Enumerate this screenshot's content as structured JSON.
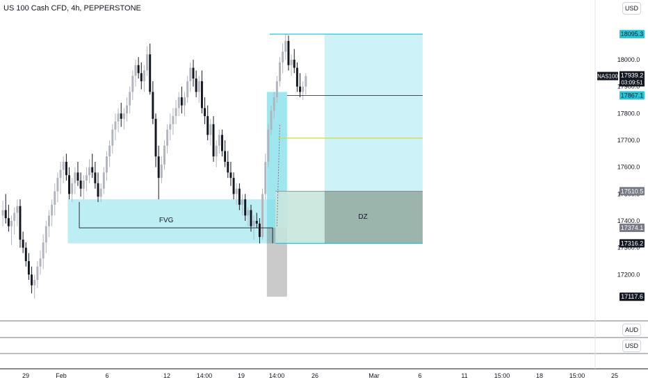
{
  "header": {
    "symbol_title": "US 100 Cash CFD, 4h, PEPPERSTONE"
  },
  "currency_buttons": {
    "main": "USD",
    "pane1": "AUD",
    "pane2": "USD"
  },
  "price_tag": {
    "symbol": "NAS100",
    "price": "17939.2",
    "countdown": "03:09:51"
  },
  "chart_data": {
    "type": "candlestick",
    "y_axis": {
      "min": 17100,
      "max": 18150,
      "ticks": [
        17200,
        17300,
        17400,
        17500,
        17600,
        17700,
        17800,
        17900,
        18000
      ],
      "tick_labels": [
        "17200.0",
        "17300.0",
        "17400.0",
        "17500.0",
        "17600.0",
        "17700.0",
        "17800.0",
        "17900.0",
        "18000.0"
      ]
    },
    "x_axis_labels": [
      "29",
      "Feb",
      "6",
      "12",
      "14:00",
      "19",
      "14:00",
      "26",
      "Mar",
      "6",
      "11",
      "15:00",
      "18",
      "15:00",
      "25"
    ],
    "level_labels": [
      {
        "text": "18095.3",
        "value": 18095.3,
        "bg": "#26c6da",
        "fg": "#131722"
      },
      {
        "text": "17867.1",
        "value": 17867.1,
        "bg": "#26c6da",
        "fg": "#131722"
      },
      {
        "text": "17510.5",
        "value": 17510.5,
        "bg": "#787b86",
        "fg": "#ffffff"
      },
      {
        "text": "17374.1",
        "value": 17374.1,
        "bg": "#787b86",
        "fg": "#ffffff"
      },
      {
        "text": "17316.2",
        "value": 17316.2,
        "bg": "#131722",
        "fg": "#ffffff"
      },
      {
        "text": "17117.6",
        "value": 17117.6,
        "bg": "#131722",
        "fg": "#ffffff"
      }
    ],
    "annotations": [
      {
        "text": "FVG",
        "kind": "fvg_zone",
        "from_bar": 23,
        "to_bar": 95,
        "low": 17316.2,
        "high": 17480
      },
      {
        "text": "DZ",
        "kind": "demand_zone",
        "from_bar": 95,
        "to_bar": 146,
        "low": 17316.2,
        "high": 17510.5
      }
    ],
    "target_box": {
      "from_bar": 112,
      "to_bar": 146,
      "low": 17510.5,
      "high": 18095.3
    },
    "midline": 17708,
    "entry_line": 17867.1,
    "candles_ohlc": [
      [
        17420,
        17475,
        17380,
        17440
      ],
      [
        17440,
        17500,
        17390,
        17410
      ],
      [
        17410,
        17460,
        17360,
        17380
      ],
      [
        17380,
        17420,
        17310,
        17400
      ],
      [
        17400,
        17450,
        17350,
        17430
      ],
      [
        17430,
        17480,
        17380,
        17455
      ],
      [
        17455,
        17480,
        17300,
        17330
      ],
      [
        17330,
        17360,
        17280,
        17300
      ],
      [
        17300,
        17320,
        17230,
        17250
      ],
      [
        17250,
        17280,
        17180,
        17200
      ],
      [
        17200,
        17230,
        17130,
        17160
      ],
      [
        17160,
        17200,
        17110,
        17180
      ],
      [
        17180,
        17250,
        17150,
        17230
      ],
      [
        17230,
        17290,
        17200,
        17260
      ],
      [
        17260,
        17350,
        17220,
        17320
      ],
      [
        17320,
        17400,
        17280,
        17380
      ],
      [
        17380,
        17440,
        17340,
        17420
      ],
      [
        17420,
        17480,
        17380,
        17460
      ],
      [
        17460,
        17540,
        17420,
        17510
      ],
      [
        17510,
        17580,
        17470,
        17560
      ],
      [
        17560,
        17620,
        17500,
        17590
      ],
      [
        17590,
        17640,
        17540,
        17620
      ],
      [
        17620,
        17650,
        17550,
        17570
      ],
      [
        17570,
        17600,
        17480,
        17500
      ],
      [
        17500,
        17560,
        17470,
        17540
      ],
      [
        17540,
        17600,
        17500,
        17580
      ],
      [
        17580,
        17620,
        17530,
        17550
      ],
      [
        17550,
        17580,
        17490,
        17520
      ],
      [
        17520,
        17570,
        17480,
        17550
      ],
      [
        17550,
        17600,
        17510,
        17570
      ],
      [
        17570,
        17630,
        17540,
        17600
      ],
      [
        17600,
        17650,
        17560,
        17580
      ],
      [
        17580,
        17620,
        17520,
        17540
      ],
      [
        17540,
        17580,
        17470,
        17490
      ],
      [
        17490,
        17540,
        17470,
        17520
      ],
      [
        17520,
        17600,
        17500,
        17580
      ],
      [
        17580,
        17660,
        17550,
        17640
      ],
      [
        17640,
        17700,
        17600,
        17680
      ],
      [
        17680,
        17760,
        17650,
        17740
      ],
      [
        17740,
        17800,
        17700,
        17770
      ],
      [
        17770,
        17820,
        17730,
        17800
      ],
      [
        17800,
        17840,
        17750,
        17780
      ],
      [
        17780,
        17820,
        17740,
        17800
      ],
      [
        17800,
        17860,
        17770,
        17830
      ],
      [
        17830,
        17900,
        17800,
        17880
      ],
      [
        17880,
        17960,
        17850,
        17940
      ],
      [
        17940,
        18000,
        17900,
        17980
      ],
      [
        17980,
        18010,
        17930,
        17950
      ],
      [
        17950,
        17990,
        17890,
        17920
      ],
      [
        17920,
        17980,
        17880,
        17960
      ],
      [
        17960,
        18050,
        17940,
        18020
      ],
      [
        18020,
        18060,
        17870,
        17880
      ],
      [
        17880,
        17920,
        17760,
        17780
      ],
      [
        17780,
        17800,
        17600,
        17640
      ],
      [
        17640,
        17680,
        17480,
        17560
      ],
      [
        17560,
        17640,
        17540,
        17610
      ],
      [
        17610,
        17700,
        17590,
        17680
      ],
      [
        17680,
        17760,
        17650,
        17740
      ],
      [
        17740,
        17800,
        17700,
        17760
      ],
      [
        17760,
        17820,
        17720,
        17790
      ],
      [
        17790,
        17850,
        17760,
        17820
      ],
      [
        17820,
        17880,
        17790,
        17860
      ],
      [
        17860,
        17900,
        17800,
        17830
      ],
      [
        17830,
        17880,
        17790,
        17860
      ],
      [
        17860,
        17940,
        17840,
        17920
      ],
      [
        17920,
        17990,
        17880,
        17970
      ],
      [
        17970,
        18000,
        17900,
        17930
      ],
      [
        17930,
        17960,
        17860,
        17880
      ],
      [
        17880,
        17940,
        17840,
        17920
      ],
      [
        17920,
        17960,
        17800,
        17820
      ],
      [
        17820,
        17860,
        17760,
        17790
      ],
      [
        17790,
        17830,
        17700,
        17720
      ],
      [
        17720,
        17780,
        17680,
        17760
      ],
      [
        17760,
        17790,
        17620,
        17640
      ],
      [
        17640,
        17700,
        17600,
        17680
      ],
      [
        17680,
        17740,
        17650,
        17720
      ],
      [
        17720,
        17740,
        17640,
        17660
      ],
      [
        17660,
        17700,
        17600,
        17620
      ],
      [
        17620,
        17660,
        17560,
        17580
      ],
      [
        17580,
        17620,
        17530,
        17560
      ],
      [
        17560,
        17580,
        17480,
        17500
      ],
      [
        17500,
        17540,
        17460,
        17520
      ],
      [
        17520,
        17540,
        17440,
        17460
      ],
      [
        17460,
        17500,
        17420,
        17480
      ],
      [
        17480,
        17500,
        17400,
        17420
      ],
      [
        17420,
        17450,
        17380,
        17440
      ],
      [
        17440,
        17460,
        17360,
        17380
      ],
      [
        17380,
        17420,
        17330,
        17400
      ],
      [
        17400,
        17430,
        17374,
        17390
      ],
      [
        17390,
        17410,
        17316,
        17340
      ],
      [
        17340,
        17520,
        17330,
        17500
      ],
      [
        17500,
        17650,
        17480,
        17620
      ],
      [
        17620,
        17760,
        17600,
        17740
      ],
      [
        17740,
        17830,
        17720,
        17810
      ],
      [
        17810,
        17880,
        17780,
        17860
      ],
      [
        17860,
        17940,
        17840,
        17920
      ],
      [
        17920,
        18010,
        17900,
        17990
      ],
      [
        17990,
        18060,
        17950,
        18030
      ],
      [
        18030,
        18095,
        18000,
        18070
      ],
      [
        18070,
        18090,
        17960,
        17980
      ],
      [
        17980,
        18020,
        17940,
        18000
      ],
      [
        18000,
        18040,
        17950,
        17970
      ],
      [
        17970,
        17990,
        17880,
        17900
      ],
      [
        17900,
        17950,
        17860,
        17880
      ],
      [
        17880,
        17920,
        17850,
        17900
      ],
      [
        17900,
        17950,
        17870,
        17939.2
      ]
    ]
  }
}
